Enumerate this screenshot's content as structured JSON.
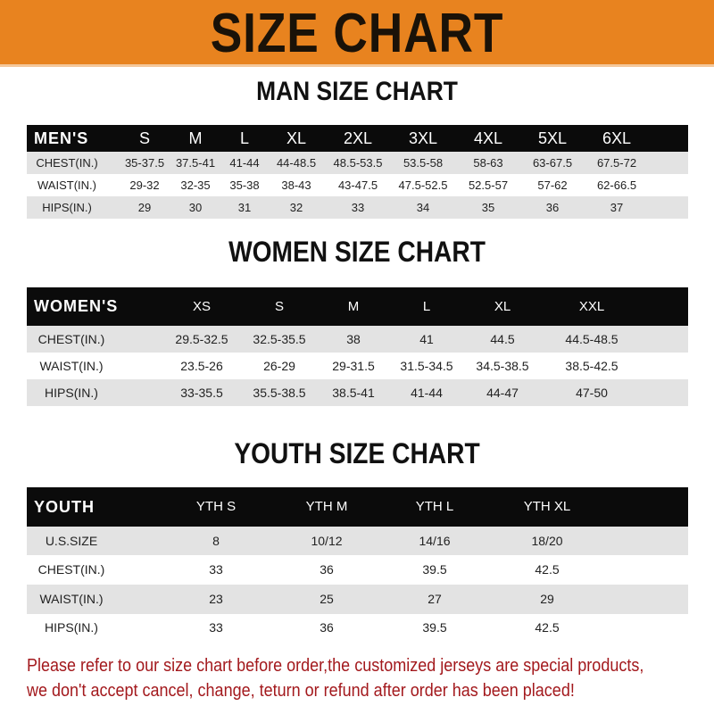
{
  "banner": {
    "title": "SIZE CHART",
    "color": "#E8831F"
  },
  "men": {
    "title": "MAN SIZE CHART",
    "header": [
      "MEN'S",
      "S",
      "M",
      "L",
      "XL",
      "2XL",
      "3XL",
      "4XL",
      "5XL",
      "6XL"
    ],
    "rows": [
      [
        "CHEST(IN.)",
        "35-37.5",
        "37.5-41",
        "41-44",
        "44-48.5",
        "48.5-53.5",
        "53.5-58",
        "58-63",
        "63-67.5",
        "67.5-72"
      ],
      [
        "WAIST(IN.)",
        "29-32",
        "32-35",
        "35-38",
        "38-43",
        "43-47.5",
        "47.5-52.5",
        "52.5-57",
        "57-62",
        "62-66.5"
      ],
      [
        "HIPS(IN.)",
        "29",
        "30",
        "31",
        "32",
        "33",
        "34",
        "35",
        "36",
        "37"
      ]
    ]
  },
  "women": {
    "title": "WOMEN SIZE CHART",
    "header": [
      "WOMEN'S",
      "XS",
      "S",
      "M",
      "L",
      "XL",
      "XXL"
    ],
    "rows": [
      [
        "CHEST(IN.)",
        "29.5-32.5",
        "32.5-35.5",
        "38",
        "41",
        "44.5",
        "44.5-48.5"
      ],
      [
        "WAIST(IN.)",
        "23.5-26",
        "26-29",
        "29-31.5",
        "31.5-34.5",
        "34.5-38.5",
        "38.5-42.5"
      ],
      [
        "HIPS(IN.)",
        "33-35.5",
        "35.5-38.5",
        "38.5-41",
        "41-44",
        "44-47",
        "47-50"
      ]
    ]
  },
  "youth": {
    "title": "YOUTH SIZE CHART",
    "header": [
      "YOUTH",
      "YTH S",
      "YTH M",
      "YTH L",
      "YTH XL"
    ],
    "rows": [
      [
        "U.S.SIZE",
        "8",
        "10/12",
        "14/16",
        "18/20"
      ],
      [
        "CHEST(IN.)",
        "33",
        "36",
        "39.5",
        "42.5"
      ],
      [
        "WAIST(IN.)",
        "23",
        "25",
        "27",
        "29"
      ],
      [
        "HIPS(IN.)",
        "33",
        "36",
        "39.5",
        "42.5"
      ]
    ]
  },
  "note": {
    "line1": "Please refer to our size chart before order,the customized jerseys are special products,",
    "line2": "we don't accept cancel, change, teturn or refund after order has been placed!",
    "color": "#A3191D"
  }
}
